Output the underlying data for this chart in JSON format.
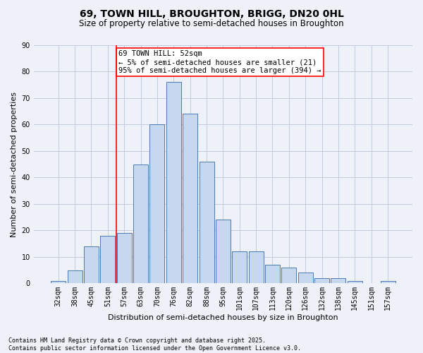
{
  "title1": "69, TOWN HILL, BROUGHTON, BRIGG, DN20 0HL",
  "title2": "Size of property relative to semi-detached houses in Broughton",
  "xlabel": "Distribution of semi-detached houses by size in Broughton",
  "ylabel": "Number of semi-detached properties",
  "footnote": "Contains HM Land Registry data © Crown copyright and database right 2025.\nContains public sector information licensed under the Open Government Licence v3.0.",
  "categories": [
    "32sqm",
    "38sqm",
    "45sqm",
    "51sqm",
    "57sqm",
    "63sqm",
    "70sqm",
    "76sqm",
    "82sqm",
    "88sqm",
    "95sqm",
    "101sqm",
    "107sqm",
    "113sqm",
    "120sqm",
    "126sqm",
    "132sqm",
    "138sqm",
    "145sqm",
    "151sqm",
    "157sqm"
  ],
  "values": [
    1,
    5,
    14,
    18,
    19,
    45,
    60,
    76,
    64,
    46,
    24,
    12,
    12,
    7,
    6,
    4,
    2,
    2,
    1,
    0,
    1
  ],
  "bar_color": "#c5d8f0",
  "bar_edge_color": "#4a7ab5",
  "vline_index": 3,
  "vline_color": "red",
  "annotation_text": "69 TOWN HILL: 52sqm\n← 5% of semi-detached houses are smaller (21)\n95% of semi-detached houses are larger (394) →",
  "annotation_box_color": "white",
  "annotation_box_edge": "red",
  "ylim": [
    0,
    90
  ],
  "yticks": [
    0,
    10,
    20,
    30,
    40,
    50,
    60,
    70,
    80,
    90
  ],
  "grid_color": "#c0ccdd",
  "background_color": "#eef2f8",
  "title1_fontsize": 10,
  "title2_fontsize": 8.5,
  "xlabel_fontsize": 8,
  "ylabel_fontsize": 8,
  "tick_fontsize": 7,
  "footnote_fontsize": 6,
  "annot_fontsize": 7.5
}
